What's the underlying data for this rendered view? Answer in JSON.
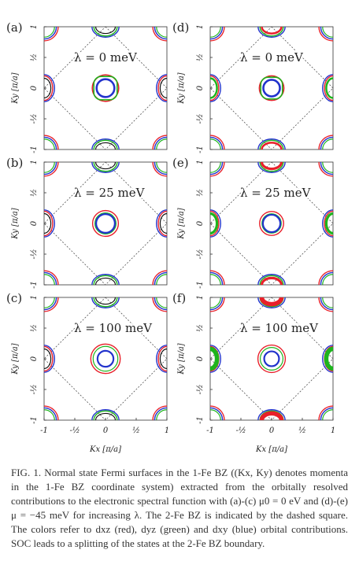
{
  "figure": {
    "panels": [
      {
        "label": "(a)",
        "lambda_text": "λ = 0 meV",
        "mu_meV": 0,
        "lambda_meV": 0
      },
      {
        "label": "(d)",
        "lambda_text": "λ = 0 meV",
        "mu_meV": -45,
        "lambda_meV": 0
      },
      {
        "label": "(b)",
        "lambda_text": "λ = 25 meV",
        "mu_meV": 0,
        "lambda_meV": 25
      },
      {
        "label": "(e)",
        "lambda_text": "λ = 25 meV",
        "mu_meV": -45,
        "lambda_meV": 25
      },
      {
        "label": "(c)",
        "lambda_text": "λ = 100 meV",
        "mu_meV": 0,
        "lambda_meV": 100
      },
      {
        "label": "(f)",
        "lambda_text": "λ = 100 meV",
        "mu_meV": -45,
        "lambda_meV": 100
      }
    ],
    "ticks_y": [
      "1",
      "1/2",
      "0",
      "-1/2",
      "-1"
    ],
    "ticks_x": [
      "-1",
      "-1/2",
      "0",
      "1/2",
      "1"
    ],
    "ylabel": "Ky [π/a]",
    "xlabel": "Kx [π/a]",
    "orbital_colors": {
      "dxz": "#e8202a",
      "dyz": "#1db41d",
      "dxy": "#2233cc"
    }
  },
  "caption": {
    "text": "FIG. 1. Normal state Fermi surfaces in the 1-Fe BZ ((Kx, Ky) denotes momenta in the 1-Fe BZ coordinate system) extracted from the orbitally resolved contributions to the electronic spectral function with (a)-(c) μ0 = 0 eV and (d)-(e) μ = −45 meV for increasing λ. The 2-Fe BZ is indicated by the dashed square. The colors refer to dxz (red), dyz (green) and dxy (blue) orbital contributions. SOC leads to a splitting of the states at the 2-Fe BZ boundary."
  }
}
